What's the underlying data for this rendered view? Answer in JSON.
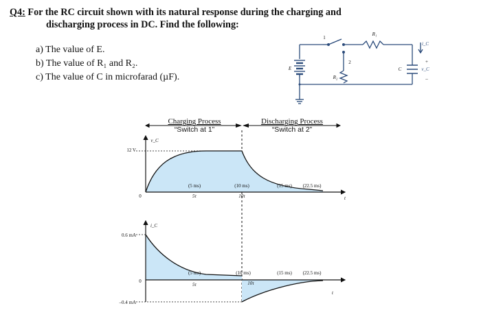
{
  "question": {
    "number": "Q4:",
    "line1": "For the RC circuit shown with its natural response during the charging and",
    "line2": "discharging process in DC. Find the following:"
  },
  "items": [
    {
      "label": "a)",
      "text": "The value of E."
    },
    {
      "label": "b)",
      "text": "The value of R₁ and R₂."
    },
    {
      "label": "c)",
      "text": "The value of C in microfarad (µF)."
    }
  ],
  "circuit": {
    "switch_pos1": "1",
    "switch_pos2": "2",
    "r1": "R₁",
    "r2": "R₂",
    "source": "E",
    "capacitor": "C",
    "current": "i_C",
    "voltage": "v_C",
    "plus": "+",
    "minus": "–"
  },
  "graph": {
    "charging_title": "Charging Process",
    "charging_sub": "“Switch at 1”",
    "discharging_title": "Discharging Process",
    "discharging_sub": "“Switch at 2”",
    "v_axis": "v_C",
    "v_level": "12 V",
    "i_axis": "i_C",
    "i_peak": "0.6 mA",
    "i_neg": "–0.4 mA",
    "zero": "0",
    "t_axis": "t",
    "ann_5ms": "(5 ms)",
    "ann_5tau": "5τ",
    "ann_10ms": "(10 ms)",
    "ann_10tau": "10τ",
    "ann_15ms": "(15 ms)",
    "ann_22ms": "(22.5 ms)"
  }
}
